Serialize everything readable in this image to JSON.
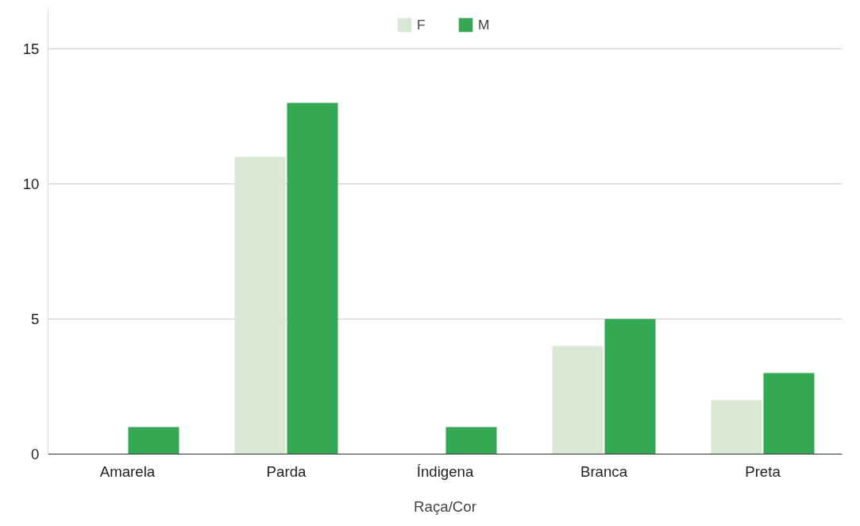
{
  "chart_data": {
    "type": "bar",
    "xlabel": "Raça/Cor",
    "categories": [
      "Amarela",
      "Parda",
      "Índigena",
      "Branca",
      "Preta"
    ],
    "series": [
      {
        "name": "F",
        "color": "#d9e7d5",
        "values": [
          0,
          11,
          0,
          4,
          2
        ]
      },
      {
        "name": "M",
        "color": "#34a853",
        "values": [
          1,
          13,
          1,
          5,
          3
        ]
      }
    ],
    "ylim": [
      0,
      16.5
    ],
    "yticks": [
      0,
      5,
      10,
      15
    ],
    "grid": "y",
    "legend": "top"
  }
}
